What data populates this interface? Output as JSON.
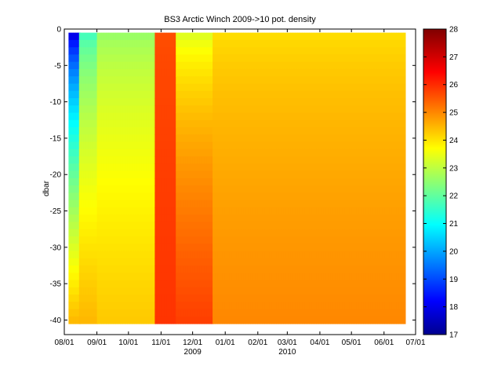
{
  "chart_data": {
    "type": "heatmap",
    "title": "BS3 Arctic Winch 2009->10  pot. density",
    "ylabel": "dbar",
    "xlabel": "",
    "x_tick_labels": [
      "08/01",
      "09/01",
      "10/01",
      "11/01",
      "12/01",
      "01/01",
      "02/01",
      "03/01",
      "04/01",
      "05/01",
      "06/01",
      "07/01"
    ],
    "x_year_labels": [
      {
        "label": "2009",
        "at": "12/01"
      },
      {
        "label": "2010",
        "at": "03/01"
      }
    ],
    "xlim": [
      "2009-08-01",
      "2010-07-01"
    ],
    "ylim": [
      -42,
      0
    ],
    "y_ticks": [
      0,
      -5,
      -10,
      -15,
      -20,
      -25,
      -30,
      -35,
      -40
    ],
    "y_tick_labels": [
      "0",
      "-5",
      "-10",
      "-15",
      "-20",
      "-25",
      "-30",
      "-35",
      "-40"
    ],
    "colorbar": {
      "min": 17,
      "max": 28,
      "ticks": [
        17,
        18,
        19,
        20,
        21,
        22,
        23,
        24,
        25,
        26,
        27,
        28
      ],
      "colormap": "jet"
    },
    "profile_depth_range": [
      -0.5,
      -40.5
    ],
    "description_segments": [
      {
        "from": "2009-08-05",
        "to": "2009-08-15",
        "surface": 17.5,
        "bottom": 24.5
      },
      {
        "from": "2009-08-15",
        "to": "2009-09-01",
        "surface": 21.5,
        "bottom": 24.5
      },
      {
        "from": "2009-09-01",
        "to": "2009-10-26",
        "surface": 22.5,
        "bottom": 24.3
      },
      {
        "from": "2009-10-26",
        "to": "2009-11-15",
        "surface": 25.6,
        "bottom": 25.9
      },
      {
        "from": "2009-11-15",
        "to": "2009-12-20",
        "surface": 23.2,
        "bottom": 25.8
      },
      {
        "from": "2009-12-20",
        "to": "2010-06-21",
        "surface": 24.0,
        "bottom": 25.0
      }
    ],
    "grid": false,
    "legend": "none"
  }
}
